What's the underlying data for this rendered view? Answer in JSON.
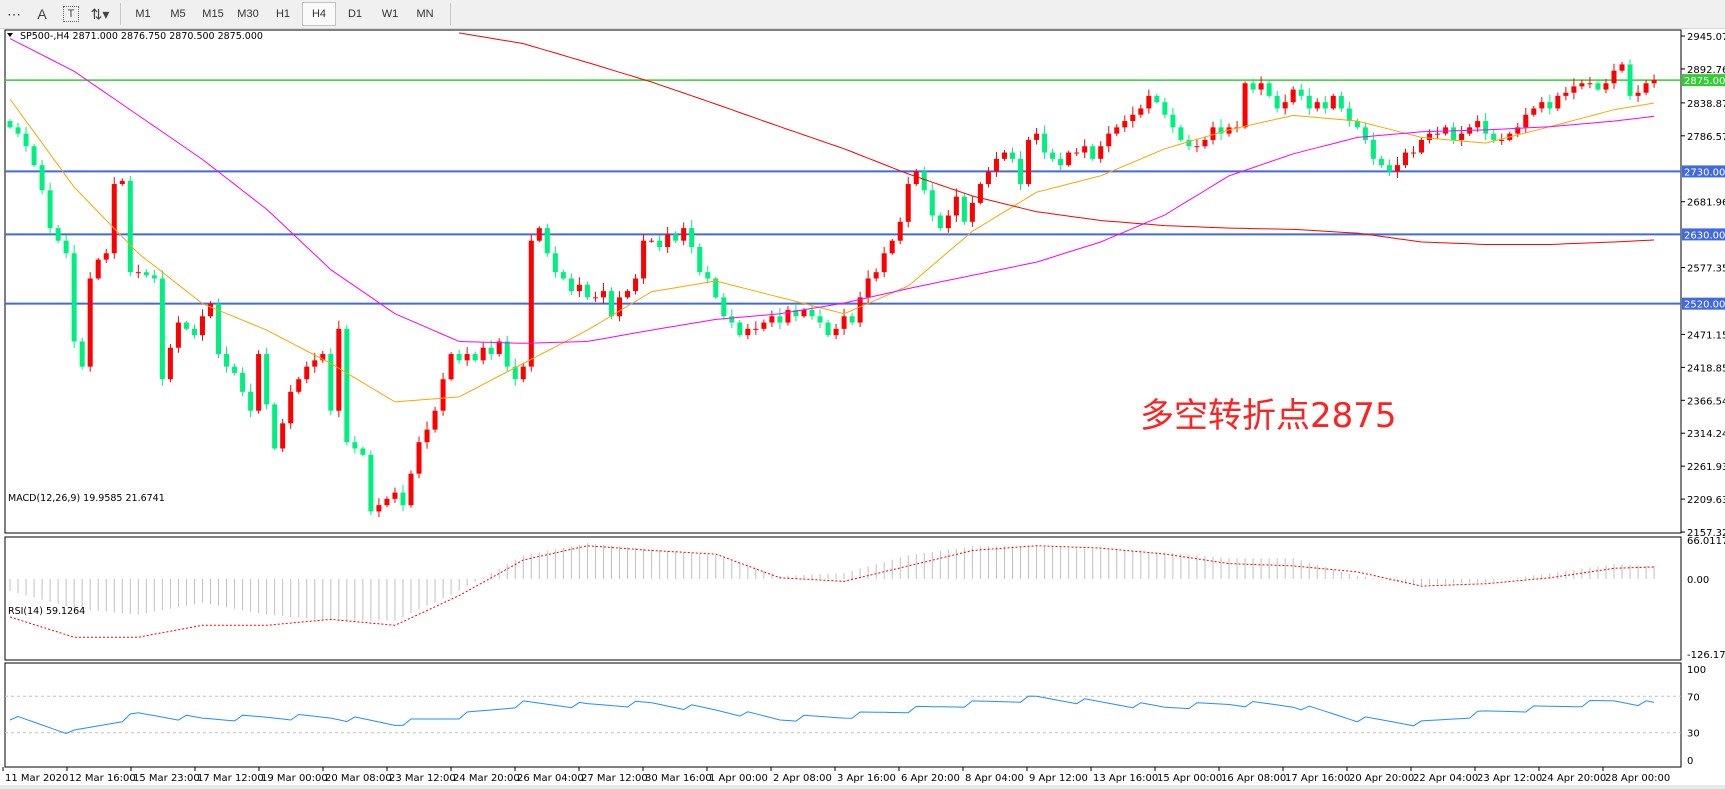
{
  "toolbar": {
    "icons": [
      "period-separator-icon",
      "text-icon",
      "text-label-icon",
      "arrows-dropdown-icon"
    ],
    "text_icon_glyph": "A",
    "label_icon_glyph": "T",
    "timeframes": [
      "M1",
      "M5",
      "M15",
      "M30",
      "H1",
      "H4",
      "D1",
      "W1",
      "MN"
    ],
    "active_timeframe": "H4"
  },
  "chart": {
    "symbol_line": "SP500-,H4  2871.000 2876.750 2870.500 2875.000",
    "annotation": "多空转折点2875",
    "colors": {
      "bull": "#ff0000",
      "bear": "#00f080",
      "ma_fast": "#ffa500",
      "ma_mid": "#ff00ff",
      "ma_slow": "#ff0000",
      "hline_blue": "#4169e1",
      "hline_green": "#32cd32",
      "macd_hist": "#c0c0c0",
      "macd_signal": "#ff0000",
      "rsi": "#1e90ff"
    },
    "price_axis": [
      "2945.070",
      "2892.765",
      "2838.875",
      "2786.570",
      "2681.960",
      "2577.350",
      "2471.155",
      "2418.850",
      "2366.545",
      "2314.240",
      "2261.935",
      "2209.630",
      "2157.325"
    ],
    "horizontal_lines": [
      {
        "value": 2875,
        "label": "2875.000",
        "color": "green"
      },
      {
        "value": 2730,
        "label": "2730.000",
        "color": "blue"
      },
      {
        "value": 2630,
        "label": "2630.000",
        "color": "blue"
      },
      {
        "value": 2520,
        "label": "2520.000",
        "color": "blue"
      }
    ],
    "time_axis": [
      "11 Mar 2020",
      "12 Mar 16:00",
      "15 Mar 23:00",
      "17 Mar 12:00",
      "19 Mar 00:00",
      "20 Mar 08:00",
      "23 Mar 12:00",
      "24 Mar 20:00",
      "26 Mar 04:00",
      "27 Mar 12:00",
      "30 Mar 16:00",
      "1 Apr 00:00",
      "2 Apr 08:00",
      "3 Apr 16:00",
      "6 Apr 20:00",
      "8 Apr 04:00",
      "9 Apr 12:00",
      "13 Apr 16:00",
      "15 Apr 00:00",
      "16 Apr 08:00",
      "17 Apr 16:00",
      "20 Apr 20:00",
      "22 Apr 04:00",
      "23 Apr 12:00",
      "24 Apr 20:00",
      "28 Apr 00:00"
    ],
    "closes": [
      2800,
      2790,
      2770,
      2740,
      2700,
      2640,
      2620,
      2600,
      2460,
      2420,
      2560,
      2590,
      2600,
      2710,
      2715,
      2570,
      2570,
      2565,
      2560,
      2400,
      2450,
      2490,
      2480,
      2470,
      2500,
      2520,
      2440,
      2420,
      2410,
      2380,
      2350,
      2440,
      2360,
      2290,
      2330,
      2380,
      2400,
      2420,
      2430,
      2440,
      2350,
      2480,
      2300,
      2290,
      2280,
      2190,
      2200,
      2210,
      2220,
      2200,
      2250,
      2300,
      2320,
      2350,
      2400,
      2440,
      2430,
      2440,
      2430,
      2450,
      2440,
      2460,
      2420,
      2400,
      2420,
      2620,
      2640,
      2600,
      2570,
      2560,
      2540,
      2550,
      2530,
      2530,
      2540,
      2500,
      2530,
      2540,
      2560,
      2620,
      2620,
      2610,
      2630,
      2620,
      2640,
      2610,
      2570,
      2560,
      2530,
      2500,
      2490,
      2470,
      2480,
      2480,
      2490,
      2500,
      2490,
      2510,
      2500,
      2510,
      2500,
      2490,
      2470,
      2480,
      2500,
      2490,
      2530,
      2560,
      2570,
      2600,
      2620,
      2650,
      2710,
      2730,
      2700,
      2660,
      2640,
      2660,
      2690,
      2650,
      2680,
      2710,
      2730,
      2750,
      2760,
      2750,
      2710,
      2780,
      2790,
      2760,
      2750,
      2740,
      2760,
      2760,
      2770,
      2750,
      2770,
      2790,
      2800,
      2810,
      2820,
      2830,
      2850,
      2840,
      2820,
      2800,
      2780,
      2770,
      2770,
      2780,
      2800,
      2790,
      2800,
      2800,
      2870,
      2860,
      2870,
      2850,
      2830,
      2840,
      2860,
      2850,
      2830,
      2840,
      2830,
      2850,
      2830,
      2810,
      2800,
      2780,
      2750,
      2740,
      2730,
      2740,
      2760,
      2760,
      2780,
      2790,
      2790,
      2800,
      2780,
      2790,
      2800,
      2810,
      2790,
      2780,
      2780,
      2790,
      2800,
      2820,
      2830,
      2840,
      2830,
      2850,
      2855,
      2865,
      2870,
      2870,
      2860,
      2870,
      2890,
      2900,
      2850,
      2855,
      2870,
      2875
    ],
    "ma_fast_at_ticks": [
      2845,
      2705,
      2600,
      2520,
      2478,
      2425,
      2364,
      2372,
      2425,
      2478,
      2539,
      2556,
      2530,
      2504,
      2548,
      2635,
      2697,
      2723,
      2766,
      2796,
      2819,
      2810,
      2784,
      2775,
      2801,
      2828,
      2845
    ],
    "ma_mid_at_ticks": [
      2941,
      2889,
      2819,
      2749,
      2670,
      2574,
      2504,
      2460,
      2457,
      2460,
      2478,
      2495,
      2504,
      2521,
      2544,
      2565,
      2586,
      2618,
      2661,
      2723,
      2758,
      2784,
      2793,
      2796,
      2801,
      2810,
      2822
    ],
    "ma_slow_at_ticks": [
      null,
      null,
      null,
      null,
      null,
      null,
      null,
      2950,
      2933,
      2903,
      2872,
      2837,
      2801,
      2766,
      2726,
      2691,
      2666,
      2652,
      2644,
      2640,
      2638,
      2632,
      2618,
      2614,
      2614,
      2618,
      2623
    ]
  },
  "macd": {
    "label": "MACD(12,26,9) 19.9585 21.6741",
    "axis": [
      "66.0117",
      "0.00",
      "-126.173"
    ],
    "histogram_at_ticks": [
      -20,
      -50,
      -60,
      -40,
      -60,
      -70,
      -70,
      -20,
      40,
      60,
      50,
      40,
      5,
      10,
      40,
      55,
      55,
      50,
      45,
      35,
      35,
      5,
      -10,
      -5,
      10,
      25,
      20
    ],
    "signal_at_ticks": [
      -64,
      -98,
      -98,
      -78,
      -78,
      -68,
      -78,
      -28,
      32,
      56,
      48,
      42,
      2,
      -4,
      22,
      48,
      56,
      52,
      42,
      26,
      22,
      12,
      -12,
      -8,
      2,
      18,
      21.67
    ]
  },
  "rsi": {
    "label": "RSI(14) 59.1264",
    "axis": [
      "100",
      "70",
      "30",
      "0"
    ],
    "values_at_ticks": [
      47,
      30,
      50,
      45,
      47,
      47,
      40,
      48,
      62,
      60,
      62,
      55,
      45,
      48,
      55,
      62,
      68,
      63,
      58,
      62,
      60,
      45,
      40,
      52,
      58,
      65,
      59.13
    ]
  }
}
